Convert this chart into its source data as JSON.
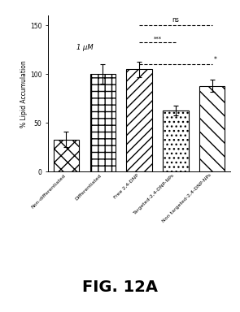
{
  "categories": [
    "Non-differentiated",
    "Differentiated",
    "Free 2,4-DNP",
    "Targeted-2,4-DNP-NPs",
    "Non targeted-2,4-DNP-NPs"
  ],
  "values": [
    33,
    100,
    105,
    63,
    88
  ],
  "errors": [
    8,
    10,
    8,
    5,
    6
  ],
  "ylabel": "% Lipid Accumulation",
  "ylim": [
    0,
    160
  ],
  "yticks": [
    0,
    50,
    100,
    150
  ],
  "annotation_text": "1 μM",
  "hatch_patterns": [
    "xx",
    "++",
    "///",
    "...",
    "\\\\\\\\"
  ],
  "background_color": "#ffffff",
  "fig_label": "FIG. 12A"
}
